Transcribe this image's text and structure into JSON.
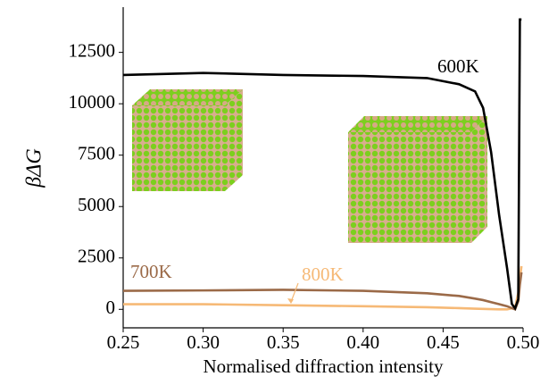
{
  "chart_data": {
    "type": "line",
    "x_label": "Normalised diffraction intensity",
    "y_label": "βΔG",
    "x": [
      0.25,
      0.3,
      0.35,
      0.4,
      0.44,
      0.46,
      0.47,
      0.475,
      0.48,
      0.485,
      0.49,
      0.493,
      0.495,
      0.497,
      0.498,
      0.499
    ],
    "series": [
      {
        "name": "600K",
        "color": "#000000",
        "values": [
          11400,
          11500,
          11400,
          11350,
          11250,
          10950,
          10600,
          9800,
          7650,
          4600,
          2000,
          260,
          50,
          500,
          14100,
          14100
        ]
      },
      {
        "name": "700K",
        "color": "#9b6a48",
        "values": [
          900,
          920,
          950,
          900,
          780,
          650,
          520,
          450,
          350,
          250,
          150,
          60,
          0,
          400,
          1200,
          1800
        ]
      },
      {
        "name": "800K",
        "color": "#f6b976",
        "values": [
          250,
          250,
          200,
          150,
          100,
          60,
          30,
          20,
          10,
          0,
          0,
          50,
          100,
          800,
          1500,
          2100
        ]
      }
    ],
    "xlim": [
      0.25,
      0.5
    ],
    "xticks": [
      0.25,
      {
        "value": 0.3,
        "label": "0.30"
      },
      0.35,
      {
        "value": 0.4,
        "label": "0.40"
      },
      0.45,
      {
        "value": 0.5,
        "label": "0.50"
      }
    ],
    "ylim": [
      -900,
      14700
    ],
    "yticks": [
      0,
      2500,
      5000,
      7500,
      10000,
      12500
    ]
  }
}
